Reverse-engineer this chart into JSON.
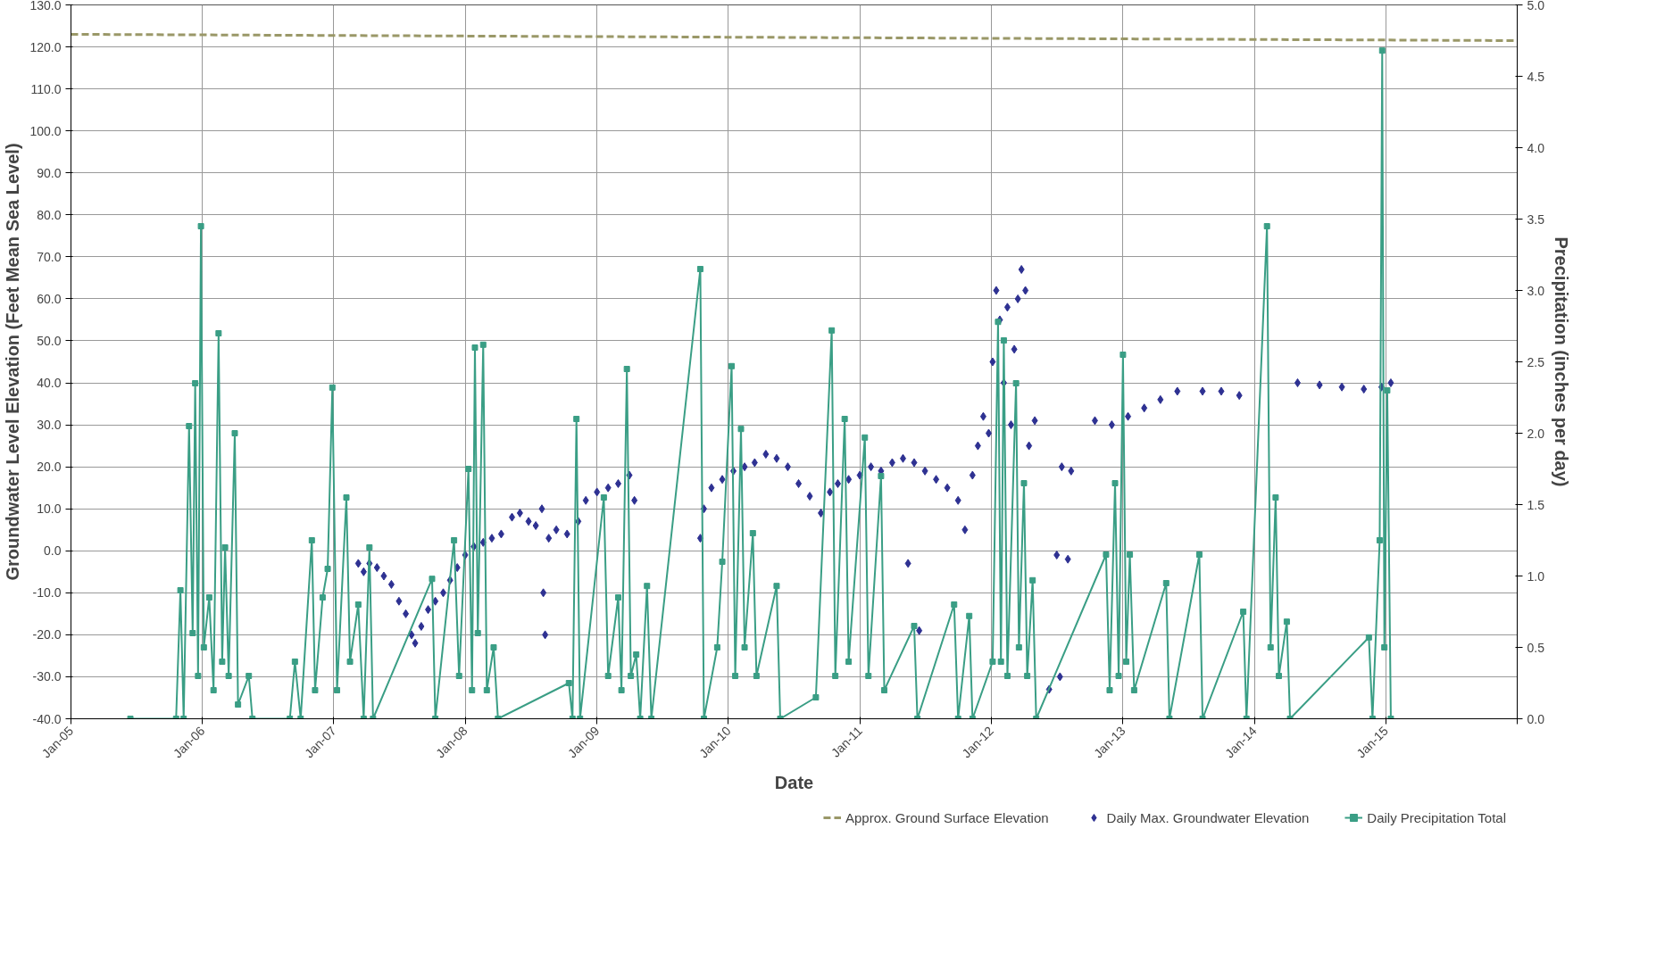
{
  "chart_data": {
    "type": "line",
    "xlabel": "Date",
    "ylabel": "Groundwater Level Elevation (Feet Mean Sea Level)",
    "y2label": "Precipitation (inches per day)",
    "xlim": [
      "2005-01-01",
      "2016-01-01"
    ],
    "xticks": [
      {
        "value": "2005-01-01",
        "label": "Jan-05"
      },
      {
        "value": "2006-01-01",
        "label": "Jan-06"
      },
      {
        "value": "2007-01-01",
        "label": "Jan-07"
      },
      {
        "value": "2008-01-01",
        "label": "Jan-08"
      },
      {
        "value": "2009-01-01",
        "label": "Jan-09"
      },
      {
        "value": "2010-01-01",
        "label": "Jan-10"
      },
      {
        "value": "2011-01-01",
        "label": "Jan-11"
      },
      {
        "value": "2012-01-01",
        "label": "Jan-12"
      },
      {
        "value": "2013-01-01",
        "label": "Jan-13"
      },
      {
        "value": "2014-01-01",
        "label": "Jan-14"
      },
      {
        "value": "2015-01-01",
        "label": "Jan-15"
      },
      {
        "value": "2016-01-01",
        "label": null
      }
    ],
    "ylim": [
      -40,
      130
    ],
    "yticks": [
      {
        "value": -40,
        "label": "-40.0"
      },
      {
        "value": -30,
        "label": "-30.0"
      },
      {
        "value": -20,
        "label": "-20.0"
      },
      {
        "value": -10,
        "label": "-10.0"
      },
      {
        "value": 0,
        "label": "0.0"
      },
      {
        "value": 10,
        "label": "10.0"
      },
      {
        "value": 20,
        "label": "20.0"
      },
      {
        "value": 30,
        "label": "30.0"
      },
      {
        "value": 40,
        "label": "40.0"
      },
      {
        "value": 50,
        "label": "50.0"
      },
      {
        "value": 60,
        "label": "60.0"
      },
      {
        "value": 70,
        "label": "70.0"
      },
      {
        "value": 80,
        "label": "80.0"
      },
      {
        "value": 90,
        "label": "90.0"
      },
      {
        "value": 100,
        "label": "100.0"
      },
      {
        "value": 110,
        "label": "110.0"
      },
      {
        "value": 120,
        "label": "120.0"
      },
      {
        "value": 130,
        "label": "130.0"
      }
    ],
    "y2lim": [
      0,
      5
    ],
    "y2ticks": [
      {
        "value": 0,
        "label": "0.0"
      },
      {
        "value": 0.5,
        "label": "0.5"
      },
      {
        "value": 1,
        "label": "1.0"
      },
      {
        "value": 1.5,
        "label": "1.5"
      },
      {
        "value": 2,
        "label": "2.0"
      },
      {
        "value": 2.5,
        "label": "2.5"
      },
      {
        "value": 3,
        "label": "3.0"
      },
      {
        "value": 3.5,
        "label": "3.5"
      },
      {
        "value": 4,
        "label": "4.0"
      },
      {
        "value": 4.5,
        "label": "4.5"
      },
      {
        "value": 5,
        "label": "5.0"
      }
    ],
    "grid": true,
    "legend": "bottom",
    "series": [
      {
        "name": "Approx. Ground Surface Elevation",
        "line_style": "dashed",
        "marker": "none",
        "color": "#9a9868",
        "x": [
          "2005-01-01",
          "2016-01-01"
        ],
        "values": [
          123,
          121.5
        ]
      },
      {
        "name": "Daily Max. Groundwater Elevation",
        "type": "scatter",
        "marker": "diamond",
        "color": "#2e3192",
        "x": [
          "2007-03-10",
          "2007-03-25",
          "2007-04-10",
          "2007-05-01",
          "2007-05-20",
          "2007-06-10",
          "2007-07-01",
          "2007-07-20",
          "2007-08-05",
          "2007-08-15",
          "2007-09-01",
          "2007-09-20",
          "2007-10-10",
          "2007-11-01",
          "2007-11-20",
          "2007-12-10",
          "2008-01-01",
          "2008-01-25",
          "2008-02-20",
          "2008-03-15",
          "2008-04-10",
          "2008-05-10",
          "2008-06-01",
          "2008-06-25",
          "2008-07-15",
          "2008-08-01",
          "2008-08-05",
          "2008-08-10",
          "2008-08-20",
          "2008-09-10",
          "2008-10-10",
          "2008-11-10",
          "2008-12-01",
          "2009-01-01",
          "2009-02-01",
          "2009-03-01",
          "2009-04-01",
          "2009-04-15",
          "2009-10-15",
          "2009-10-25",
          "2009-11-15",
          "2009-12-15",
          "2010-01-15",
          "2010-02-15",
          "2010-03-15",
          "2010-04-15",
          "2010-05-15",
          "2010-06-15",
          "2010-07-15",
          "2010-08-15",
          "2010-09-15",
          "2010-10-10",
          "2010-11-01",
          "2010-12-01",
          "2011-01-01",
          "2011-02-01",
          "2011-03-01",
          "2011-04-01",
          "2011-05-01",
          "2011-05-15",
          "2011-06-01",
          "2011-06-15",
          "2011-07-01",
          "2011-08-01",
          "2011-09-01",
          "2011-10-01",
          "2011-10-20",
          "2011-11-10",
          "2011-11-25",
          "2011-12-10",
          "2011-12-25",
          "2012-01-05",
          "2012-01-15",
          "2012-01-25",
          "2012-02-05",
          "2012-02-15",
          "2012-02-25",
          "2012-03-05",
          "2012-03-15",
          "2012-03-25",
          "2012-04-05",
          "2012-04-15",
          "2012-05-01",
          "2012-06-10",
          "2012-07-01",
          "2012-07-10",
          "2012-07-15",
          "2012-08-01",
          "2012-08-10",
          "2012-10-15",
          "2012-12-01",
          "2013-01-15",
          "2013-03-01",
          "2013-04-15",
          "2013-06-01",
          "2013-08-10",
          "2013-10-01",
          "2013-11-20",
          "2014-05-01",
          "2014-07-01",
          "2014-09-01",
          "2014-11-01",
          "2014-12-20",
          "2015-01-15"
        ],
        "values": [
          -3,
          -5,
          -3,
          -4,
          -6,
          -8,
          -12,
          -15,
          -20,
          -22,
          -18,
          -14,
          -12,
          -10,
          -7,
          -4,
          -1,
          1,
          2,
          3,
          4,
          8,
          9,
          7,
          6,
          10,
          -10,
          -20,
          3,
          5,
          4,
          7,
          12,
          14,
          15,
          16,
          18,
          12,
          3,
          10,
          15,
          17,
          19,
          20,
          21,
          23,
          22,
          20,
          16,
          13,
          9,
          14,
          16,
          17,
          18,
          20,
          19,
          21,
          22,
          -3,
          21,
          -19,
          19,
          17,
          15,
          12,
          5,
          18,
          25,
          32,
          28,
          45,
          62,
          55,
          40,
          58,
          30,
          48,
          60,
          67,
          62,
          25,
          31,
          -33,
          -1,
          -30,
          20,
          -2,
          19,
          31,
          30,
          32,
          34,
          36,
          38,
          38,
          38,
          37,
          40,
          39.5,
          39,
          38.5,
          39,
          40
        ]
      },
      {
        "name": "Daily Precipitation Total",
        "axis": "y2",
        "marker": "square",
        "line_style": "solid",
        "color": "#3a9e85",
        "x": [
          "2005-06-15",
          "2005-10-20",
          "2005-11-01",
          "2005-11-10",
          "2005-11-25",
          "2005-12-05",
          "2005-12-12",
          "2005-12-20",
          "2005-12-28",
          "2006-01-05",
          "2006-01-20",
          "2006-02-01",
          "2006-02-15",
          "2006-02-25",
          "2006-03-05",
          "2006-03-15",
          "2006-04-01",
          "2006-04-10",
          "2006-05-10",
          "2006-05-20",
          "2006-09-01",
          "2006-09-15",
          "2006-10-01",
          "2006-11-01",
          "2006-11-10",
          "2006-12-01",
          "2006-12-15",
          "2006-12-28",
          "2007-01-10",
          "2007-02-05",
          "2007-02-15",
          "2007-03-10",
          "2007-03-25",
          "2007-04-10",
          "2007-04-20",
          "2007-10-01",
          "2007-10-10",
          "2007-12-01",
          "2007-12-15",
          "2008-01-10",
          "2008-01-20",
          "2008-01-28",
          "2008-02-05",
          "2008-02-20",
          "2008-03-01",
          "2008-03-20",
          "2008-04-01",
          "2008-10-15",
          "2008-10-25",
          "2008-11-05",
          "2008-11-15",
          "2009-01-20",
          "2009-02-01",
          "2009-03-01",
          "2009-03-10",
          "2009-03-25",
          "2009-04-05",
          "2009-04-20",
          "2009-05-01",
          "2009-05-20",
          "2009-06-01",
          "2009-10-15",
          "2009-10-25",
          "2009-12-01",
          "2009-12-15",
          "2010-01-10",
          "2010-01-20",
          "2010-02-05",
          "2010-02-15",
          "2010-03-10",
          "2010-03-20",
          "2010-05-15",
          "2010-05-25",
          "2010-09-01",
          "2010-10-15",
          "2010-10-25",
          "2010-11-20",
          "2010-12-01",
          "2011-01-15",
          "2011-01-25",
          "2011-03-01",
          "2011-03-10",
          "2011-06-01",
          "2011-06-10",
          "2011-09-20",
          "2011-10-01",
          "2011-11-01",
          "2011-11-10",
          "2012-01-05",
          "2012-01-20",
          "2012-01-28",
          "2012-02-05",
          "2012-02-15",
          "2012-03-10",
          "2012-03-18",
          "2012-04-01",
          "2012-04-10",
          "2012-04-25",
          "2012-05-05",
          "2012-11-15",
          "2012-11-25",
          "2012-12-10",
          "2012-12-20",
          "2013-01-01",
          "2013-01-10",
          "2013-01-20",
          "2013-02-01",
          "2013-05-01",
          "2013-05-10",
          "2013-08-01",
          "2013-08-10",
          "2013-12-01",
          "2013-12-10",
          "2014-02-05",
          "2014-02-15",
          "2014-03-01",
          "2014-03-10",
          "2014-04-01",
          "2014-04-10",
          "2014-11-15",
          "2014-11-25",
          "2014-12-15",
          "2014-12-22",
          "2014-12-28",
          "2015-01-05",
          "2015-01-15"
        ],
        "values": [
          0,
          0,
          0.9,
          0,
          2.05,
          0.6,
          2.35,
          0.3,
          3.45,
          0.5,
          0.85,
          0.2,
          2.7,
          0.4,
          1.2,
          0.3,
          2.0,
          0.1,
          0.3,
          0,
          0,
          0.4,
          0,
          1.25,
          0.2,
          0.85,
          1.05,
          2.32,
          0.2,
          1.55,
          0.4,
          0.8,
          0,
          1.2,
          0,
          0.98,
          0,
          1.25,
          0.3,
          1.75,
          0.2,
          2.6,
          0.6,
          2.62,
          0.2,
          0.5,
          0,
          0.25,
          0,
          2.1,
          0,
          1.55,
          0.3,
          0.85,
          0.2,
          2.45,
          0.3,
          0.45,
          0,
          0.93,
          0,
          3.15,
          0,
          0.5,
          1.1,
          2.47,
          0.3,
          2.03,
          0.5,
          1.3,
          0.3,
          0.93,
          0,
          0.15,
          2.72,
          0.3,
          2.1,
          0.4,
          1.97,
          0.3,
          1.7,
          0.2,
          0.65,
          0,
          0.8,
          0,
          0.72,
          0,
          0.4,
          2.78,
          0.4,
          2.65,
          0.3,
          2.35,
          0.5,
          1.65,
          0.3,
          0.97,
          0,
          1.15,
          0.2,
          1.65,
          0.3,
          2.55,
          0.4,
          1.15,
          0.2,
          0.95,
          0,
          1.15,
          0,
          0.75,
          0,
          3.45,
          0.5,
          1.55,
          0.3,
          0.68,
          0,
          0.57,
          0,
          1.25,
          4.68,
          0.5,
          2.3,
          0
        ]
      }
    ]
  }
}
